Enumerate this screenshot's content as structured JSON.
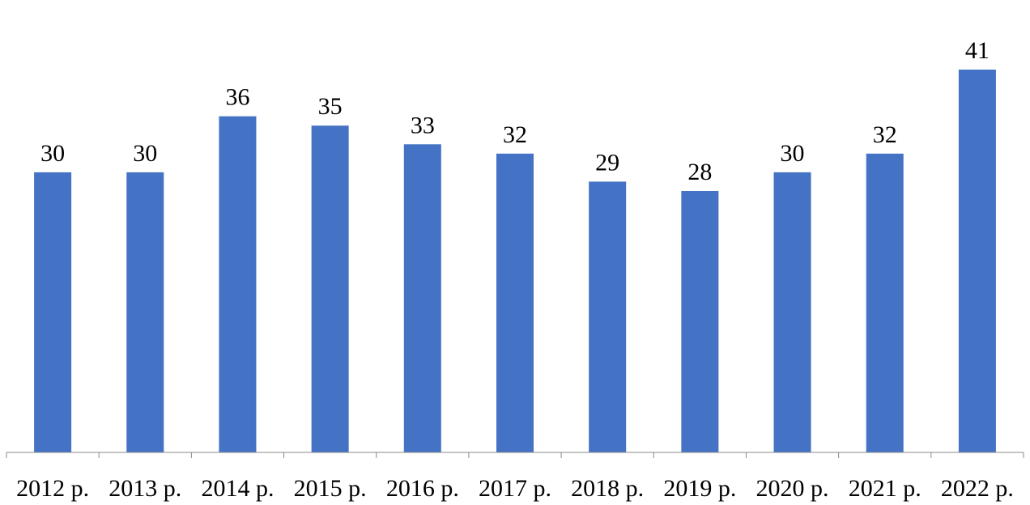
{
  "chart_data": {
    "type": "bar",
    "categories": [
      "2012 р.",
      "2013 р.",
      "2014 р.",
      "2015 р.",
      "2016 р.",
      "2017 р.",
      "2018 р.",
      "2019 р.",
      "2020 р.",
      "2021 р.",
      "2022 р."
    ],
    "values": [
      30,
      30,
      36,
      35,
      33,
      32,
      29,
      28,
      30,
      32,
      41
    ],
    "title": "",
    "xlabel": "",
    "ylabel": "",
    "ylim": [
      0,
      41
    ],
    "grid": false,
    "legend": "none",
    "bar_color": "#4472C4",
    "axis_color": "#888888",
    "data_labels": true
  }
}
